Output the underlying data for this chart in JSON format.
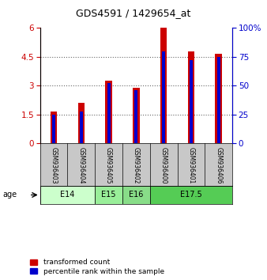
{
  "title": "GDS4591 / 1429654_at",
  "samples": [
    "GSM936403",
    "GSM936404",
    "GSM936405",
    "GSM936402",
    "GSM936400",
    "GSM936401",
    "GSM936406"
  ],
  "transformed_counts": [
    1.65,
    2.1,
    3.25,
    2.9,
    6.0,
    4.8,
    4.65
  ],
  "percentile_ranks": [
    25,
    28,
    52,
    46,
    80,
    72,
    75
  ],
  "bar_color_red": "#cc0000",
  "bar_color_blue": "#0000cc",
  "ylim_left": [
    0,
    6
  ],
  "ylim_right": [
    0,
    100
  ],
  "yticks_left": [
    0,
    1.5,
    3,
    4.5,
    6
  ],
  "yticks_right": [
    0,
    25,
    50,
    75,
    100
  ],
  "ytick_labels_left": [
    "0",
    "1.5",
    "3",
    "4.5",
    "6"
  ],
  "ytick_labels_right": [
    "0",
    "25",
    "50",
    "75",
    "100%"
  ],
  "age_groups": [
    {
      "label": "E14",
      "color": "#ccffcc",
      "indices": [
        0,
        1
      ]
    },
    {
      "label": "E15",
      "color": "#99ee99",
      "indices": [
        2
      ]
    },
    {
      "label": "E16",
      "color": "#88dd88",
      "indices": [
        3
      ]
    },
    {
      "label": "E17.5",
      "color": "#55cc55",
      "indices": [
        4,
        5,
        6
      ]
    }
  ],
  "red_bar_width": 0.25,
  "blue_bar_width": 0.12,
  "sample_area_color": "#c8c8c8",
  "legend_labels": [
    "transformed count",
    "percentile rank within the sample"
  ],
  "age_label": "age",
  "grid_yticks": [
    1.5,
    3.0,
    4.5
  ]
}
